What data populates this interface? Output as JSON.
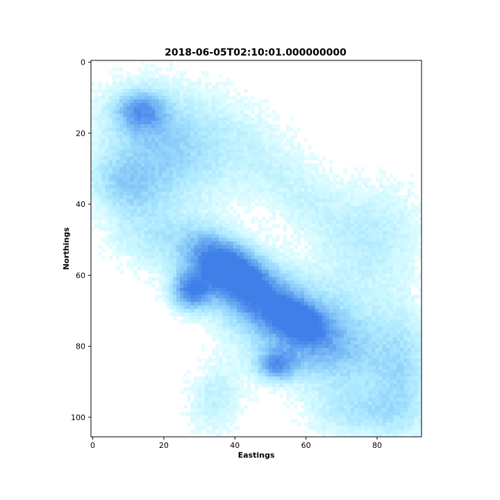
{
  "chart_data": {
    "type": "heatmap",
    "title": "2018-06-05T02:10:01.000000000",
    "xlabel": "Eastings",
    "ylabel": "Northings",
    "xlim": [
      0,
      93
    ],
    "ylim": [
      106,
      0
    ],
    "x_ticks": [
      "0",
      "20",
      "40",
      "60",
      "80"
    ],
    "y_ticks": [
      "0",
      "20",
      "40",
      "60",
      "80",
      "100"
    ],
    "grid": false,
    "legend": "none",
    "colormap": [
      "#ffffff",
      "#d6fbff",
      "#aee9ff",
      "#86c8f8",
      "#5e9ef0",
      "#3f7fe8"
    ],
    "blobs": [
      {
        "x": 38,
        "y": 58,
        "sx": 9,
        "sy": 5,
        "angle": 35,
        "amp": 0.95
      },
      {
        "x": 50,
        "y": 70,
        "sx": 14,
        "sy": 8,
        "angle": 35,
        "amp": 0.75
      },
      {
        "x": 28,
        "y": 65,
        "sx": 4,
        "sy": 4,
        "angle": 0,
        "amp": 0.8
      },
      {
        "x": 58,
        "y": 73,
        "sx": 5,
        "sy": 3,
        "angle": 30,
        "amp": 0.75
      },
      {
        "x": 52,
        "y": 86,
        "sx": 4,
        "sy": 3,
        "angle": 0,
        "amp": 0.65
      },
      {
        "x": 70,
        "y": 80,
        "sx": 12,
        "sy": 10,
        "angle": 40,
        "amp": 0.45
      },
      {
        "x": 20,
        "y": 25,
        "sx": 14,
        "sy": 9,
        "angle": 35,
        "amp": 0.5
      },
      {
        "x": 14,
        "y": 14,
        "sx": 5,
        "sy": 4,
        "angle": 0,
        "amp": 0.55
      },
      {
        "x": 9,
        "y": 35,
        "sx": 8,
        "sy": 6,
        "angle": 20,
        "amp": 0.4
      },
      {
        "x": 16,
        "y": 50,
        "sx": 9,
        "sy": 7,
        "angle": 20,
        "amp": 0.3
      },
      {
        "x": 40,
        "y": 20,
        "sx": 18,
        "sy": 8,
        "angle": 30,
        "amp": 0.22
      },
      {
        "x": 80,
        "y": 50,
        "sx": 10,
        "sy": 12,
        "angle": 30,
        "amp": 0.3
      },
      {
        "x": 88,
        "y": 88,
        "sx": 6,
        "sy": 14,
        "angle": 0,
        "amp": 0.35
      },
      {
        "x": 75,
        "y": 100,
        "sx": 10,
        "sy": 5,
        "angle": 0,
        "amp": 0.3
      },
      {
        "x": 35,
        "y": 95,
        "sx": 6,
        "sy": 8,
        "angle": 10,
        "amp": 0.3
      },
      {
        "x": 60,
        "y": 40,
        "sx": 12,
        "sy": 6,
        "angle": 35,
        "amp": 0.2
      }
    ]
  }
}
